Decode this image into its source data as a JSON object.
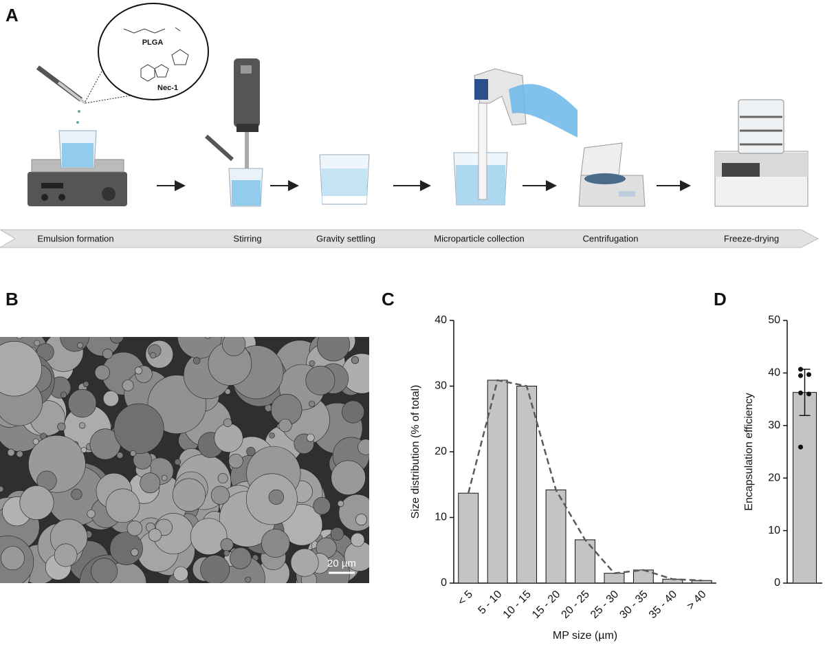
{
  "figure": {
    "panel_labels": [
      "A",
      "B",
      "C",
      "D"
    ],
    "steps": [
      "Emulsion formation",
      "Stirring",
      "Gravity settling",
      "Microparticle collection",
      "Centrifugation",
      "Freeze-drying"
    ],
    "molecules": [
      "PLGA",
      "Nec-1"
    ],
    "scale_bar": "20 µm"
  },
  "chart_data": [
    {
      "type": "bar",
      "x_label": "MP size (µm)",
      "y_label": "Size distribution (% of total)",
      "categories": [
        "< 5",
        "5 - 10",
        "10 - 15",
        "15 - 20",
        "20 - 25",
        "25 - 30",
        "30 - 35",
        "35 - 40",
        "> 40"
      ],
      "values": [
        13.7,
        30.9,
        30.0,
        14.2,
        6.6,
        1.5,
        2.0,
        0.6,
        0.4
      ],
      "color": "#c4c4c4",
      "trend_line": true,
      "trend_color": "#5a5a5a",
      "ylim": [
        0,
        40
      ],
      "yticks": [
        0,
        10,
        20,
        30,
        40
      ]
    },
    {
      "type": "bar",
      "y_label": "Encapsulation efficiency",
      "values": [
        36.3
      ],
      "error": [
        4.4
      ],
      "points": [
        40.7,
        39.7,
        39.5,
        36.2,
        36.0,
        25.9
      ],
      "color": "#c4c4c4",
      "ylim": [
        0,
        50
      ],
      "yticks": [
        0,
        10,
        20,
        30,
        40,
        50
      ]
    }
  ]
}
